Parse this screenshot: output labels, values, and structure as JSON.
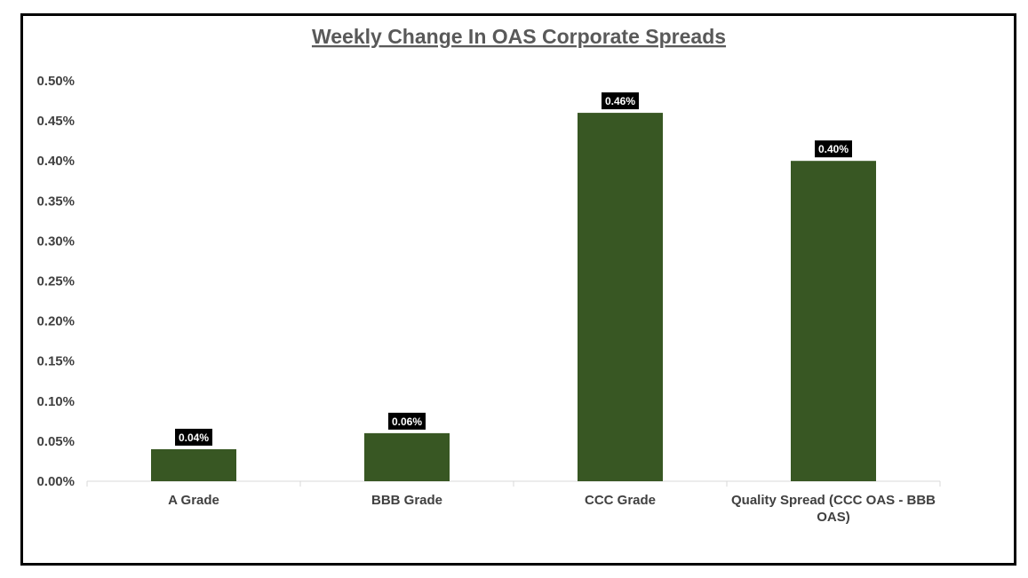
{
  "chart_data": {
    "type": "bar",
    "title": "Weekly Change In OAS Corporate Spreads",
    "categories": [
      [
        "A Grade"
      ],
      [
        "BBB Grade"
      ],
      [
        "CCC Grade"
      ],
      [
        "Quality Spread (CCC OAS - BBB",
        "OAS)"
      ]
    ],
    "values": [
      0.04,
      0.06,
      0.46,
      0.4
    ],
    "data_labels": [
      "0.04%",
      "0.06%",
      "0.46%",
      "0.40%"
    ],
    "yticks": [
      0.0,
      0.05,
      0.1,
      0.15,
      0.2,
      0.25,
      0.3,
      0.35,
      0.4,
      0.45,
      0.5
    ],
    "ytick_labels": [
      "0.00%",
      "0.05%",
      "0.10%",
      "0.15%",
      "0.20%",
      "0.25%",
      "0.30%",
      "0.35%",
      "0.40%",
      "0.45%",
      "0.50%"
    ],
    "ylim": [
      0,
      0.5
    ],
    "xlabel": "",
    "ylabel": "",
    "grid": false,
    "legend": "none",
    "colors": {
      "bar": "#385723",
      "label_bg": "#000000",
      "label_text": "#ffffff",
      "axis": "#d9d9d9",
      "text": "#404040",
      "title": "#595959"
    }
  }
}
